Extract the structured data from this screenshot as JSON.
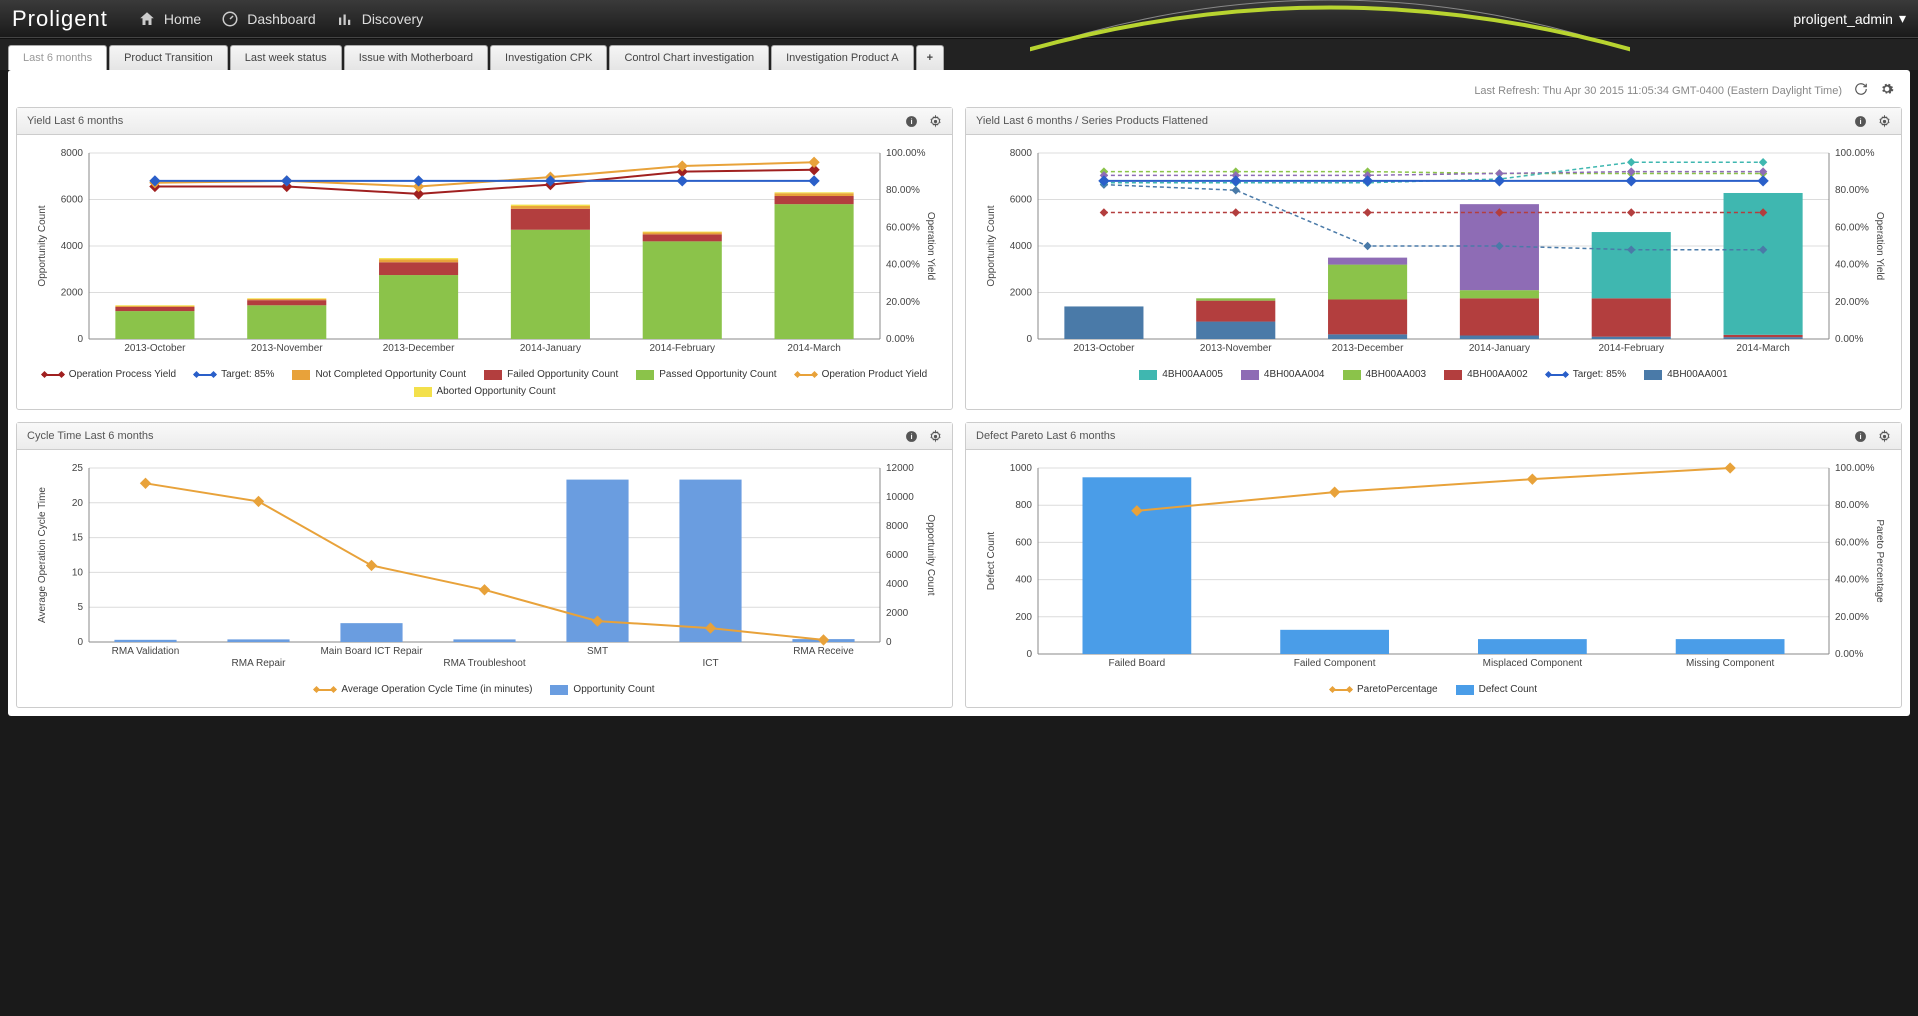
{
  "app": {
    "logo": "Proligent",
    "nav": [
      {
        "label": "Home",
        "icon": "home"
      },
      {
        "label": "Dashboard",
        "icon": "gauge"
      },
      {
        "label": "Discovery",
        "icon": "bars"
      }
    ],
    "user": "proligent_admin"
  },
  "tabs": [
    {
      "label": "Last 6 months",
      "active": true
    },
    {
      "label": "Product Transition"
    },
    {
      "label": "Last week status"
    },
    {
      "label": "Issue with Motherboard"
    },
    {
      "label": "Investigation CPK"
    },
    {
      "label": "Control Chart investigation"
    },
    {
      "label": "Investigation Product A"
    }
  ],
  "refresh_text": "Last Refresh: Thu Apr 30 2015 11:05:34 GMT-0400 (Eastern Daylight Time)",
  "charts": {
    "yield6m": {
      "title": "Yield Last 6 months",
      "type": "bar+line",
      "y1_label": "Opportunity Count",
      "y2_label": "Operation Yield",
      "y1_max": 8000,
      "y1_step": 2000,
      "y2_max": 100,
      "y2_step": 20,
      "y2_fmt": "pct",
      "categories": [
        "2013-October",
        "2013-November",
        "2013-December",
        "2014-January",
        "2014-February",
        "2014-March"
      ],
      "stacks": [
        {
          "name": "Passed Opportunity Count",
          "color": "#8bc34a",
          "values": [
            1200,
            1450,
            2750,
            4700,
            4200,
            5800
          ]
        },
        {
          "name": "Failed Opportunity Count",
          "color": "#b33e3e",
          "values": [
            180,
            220,
            550,
            900,
            300,
            350
          ]
        },
        {
          "name": "Not Completed Opportunity Count",
          "color": "#e8a23a",
          "values": [
            40,
            50,
            120,
            120,
            80,
            120
          ]
        },
        {
          "name": "Aborted Opportunity Count",
          "color": "#f3e04b",
          "values": [
            30,
            30,
            60,
            60,
            40,
            40
          ]
        }
      ],
      "lines": [
        {
          "name": "Operation Process Yield",
          "color": "#a02020",
          "values": [
            82,
            82,
            78,
            83,
            90,
            91
          ]
        },
        {
          "name": "Operation Product Yield",
          "color": "#e8a23a",
          "values": [
            84,
            85,
            82,
            87,
            93,
            95
          ]
        },
        {
          "name": "Target: 85%",
          "color": "#2a5fc9",
          "values": [
            85,
            85,
            85,
            85,
            85,
            85
          ]
        }
      ],
      "legend_order": [
        "Operation Process Yield",
        "Target: 85%",
        "Not Completed Opportunity Count",
        "Failed Opportunity Count",
        "Passed Opportunity Count",
        "Operation Product Yield",
        "Aborted Opportunity Count"
      ],
      "font_size": 10,
      "grid_color": "#dcdcdc",
      "axis_color": "#888",
      "background": "#ffffff"
    },
    "yield6m_series": {
      "title": "Yield Last 6 months / Series Products Flattened",
      "type": "bar+line",
      "y1_label": "Opportunity Count",
      "y2_label": "Operation Yield",
      "y1_max": 8000,
      "y1_step": 2000,
      "y2_max": 100,
      "y2_step": 20,
      "y2_fmt": "pct",
      "categories": [
        "2013-October",
        "2013-November",
        "2013-December",
        "2014-January",
        "2014-February",
        "2014-March"
      ],
      "stacks": [
        {
          "name": "4BH00AA001",
          "color": "#4a7aa8",
          "values": [
            1400,
            750,
            200,
            150,
            100,
            80
          ]
        },
        {
          "name": "4BH00AA002",
          "color": "#b33e3e",
          "values": [
            0,
            900,
            1500,
            1600,
            1650,
            100
          ]
        },
        {
          "name": "4BH00AA003",
          "color": "#8bc34a",
          "values": [
            0,
            100,
            1500,
            350,
            0,
            0
          ]
        },
        {
          "name": "4BH00AA004",
          "color": "#8e6cb5",
          "values": [
            0,
            0,
            300,
            3700,
            0,
            0
          ]
        },
        {
          "name": "4BH00AA005",
          "color": "#3fb7b0",
          "values": [
            0,
            0,
            0,
            0,
            2850,
            6100
          ]
        }
      ],
      "lines": [
        {
          "name": "Target: 85%",
          "color": "#2a5fc9",
          "values": [
            85,
            85,
            85,
            85,
            85,
            85
          ]
        }
      ],
      "dashed_lines": [
        {
          "color": "#4a7aa8",
          "values": [
            83,
            80,
            50,
            50,
            48,
            48
          ]
        },
        {
          "color": "#b33e3e",
          "values": [
            68,
            68,
            68,
            68,
            68,
            68
          ]
        },
        {
          "color": "#8bc34a",
          "values": [
            90,
            90,
            90,
            89,
            89,
            89
          ]
        },
        {
          "color": "#8e6cb5",
          "values": [
            88,
            88,
            88,
            89,
            90,
            90
          ]
        },
        {
          "color": "#3fb7b0",
          "values": [
            84,
            84,
            84,
            86,
            95,
            95
          ]
        }
      ],
      "legend_order": [
        "4BH00AA005",
        "4BH00AA004",
        "4BH00AA003",
        "4BH00AA002",
        "Target: 85%",
        "4BH00AA001"
      ],
      "font_size": 10,
      "grid_color": "#dcdcdc",
      "axis_color": "#888",
      "background": "#ffffff"
    },
    "cycle6m": {
      "title": "Cycle Time Last 6 months",
      "type": "bar+line",
      "y1_label": "Average Operation Cycle Time",
      "y2_label": "Opportunity Count",
      "y1_max": 25,
      "y1_step": 5,
      "y2_max": 12000,
      "y2_step": 2000,
      "categories": [
        "RMA Validation",
        "RMA Repair",
        "Main Board ICT Repair",
        "RMA Troubleshoot",
        "SMT",
        "ICT",
        "RMA Receive"
      ],
      "bars": {
        "name": "Opportunity Count",
        "color": "#6a9de0",
        "values": [
          150,
          180,
          1300,
          180,
          11200,
          11200,
          200
        ]
      },
      "line": {
        "name": "Average Operation Cycle Time (in minutes)",
        "color": "#e8a23a",
        "values": [
          22.8,
          20.2,
          11,
          7.5,
          3,
          2,
          0.3
        ]
      },
      "font_size": 10,
      "grid_color": "#dcdcdc",
      "axis_color": "#888",
      "background": "#ffffff"
    },
    "pareto6m": {
      "title": "Defect Pareto Last 6 months",
      "type": "pareto",
      "y1_label": "Defect Count",
      "y2_label": "Pareto Percentage",
      "y1_max": 1000,
      "y1_step": 200,
      "y2_max": 100,
      "y2_step": 20,
      "y2_fmt": "pct",
      "categories": [
        "Failed Board",
        "Failed Component",
        "Misplaced Component",
        "Missing Component"
      ],
      "bars": {
        "name": "Defect Count",
        "color": "#4a9de8",
        "values": [
          950,
          130,
          80,
          80
        ]
      },
      "line": {
        "name": "ParetoPercentage",
        "color": "#e8a23a",
        "values": [
          77,
          87,
          94,
          100
        ]
      },
      "font_size": 10,
      "grid_color": "#dcdcdc",
      "axis_color": "#888",
      "background": "#ffffff"
    }
  }
}
